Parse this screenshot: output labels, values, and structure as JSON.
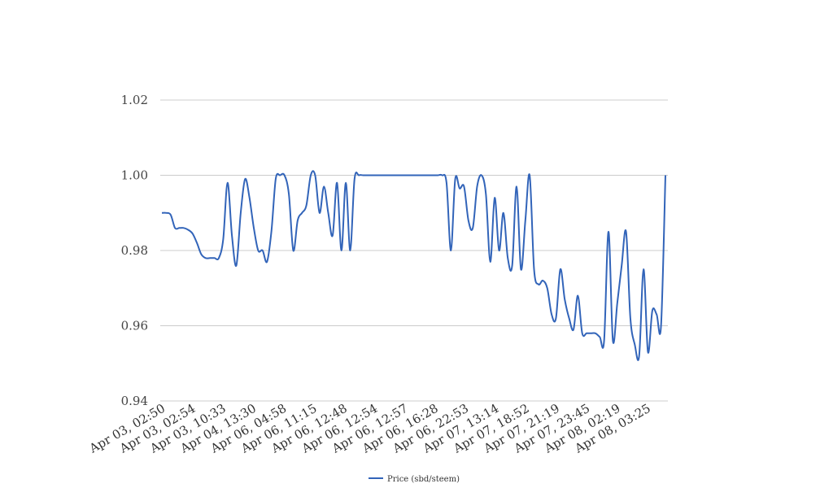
{
  "chart_data": {
    "type": "line",
    "title": "",
    "xlabel": "",
    "ylabel": "",
    "ylim": [
      0.94,
      1.02
    ],
    "y_ticks": [
      0.94,
      0.96,
      0.98,
      1.0,
      1.02
    ],
    "y_tick_labels": [
      "0.94",
      "0.96",
      "0.98",
      "1.00",
      "1.02"
    ],
    "x_tick_labels": [
      "Apr 03, 02:50",
      "Apr 03, 02:54",
      "Apr 03, 10:33",
      "Apr 04, 13:30",
      "Apr 06, 04:58",
      "Apr 06, 11:15",
      "Apr 06, 12:48",
      "Apr 06, 12:54",
      "Apr 06, 12:57",
      "Apr 06, 16:28",
      "Apr 06, 22:53",
      "Apr 07, 13:14",
      "Apr 07, 18:52",
      "Apr 07, 21:19",
      "Apr 07, 23:45",
      "Apr 08, 02:19",
      "Apr 08, 03:25"
    ],
    "grid": true,
    "legend_position": "bottom-center",
    "series": [
      {
        "name": "Price (sbd/steem)",
        "color": "#3264b9",
        "values": [
          0.99,
          0.99,
          0.9895,
          0.986,
          0.986,
          0.986,
          0.9855,
          0.9845,
          0.982,
          0.979,
          0.978,
          0.978,
          0.978,
          0.978,
          0.983,
          0.998,
          0.984,
          0.976,
          0.99,
          0.999,
          0.994,
          0.986,
          0.98,
          0.98,
          0.977,
          0.985,
          0.999,
          1.0,
          1.0,
          0.995,
          0.98,
          0.988,
          0.99,
          0.992,
          1.0,
          1.0,
          0.99,
          0.997,
          0.99,
          0.984,
          0.998,
          0.98,
          0.998,
          0.98,
          0.999,
          1.0,
          1.0,
          1.0,
          1.0,
          1.0,
          1.0,
          1.0,
          1.0,
          1.0,
          1.0,
          1.0,
          1.0,
          1.0,
          1.0,
          1.0,
          1.0,
          1.0,
          1.0,
          1.0,
          1.0,
          0.998,
          0.98,
          0.999,
          0.9965,
          0.997,
          0.988,
          0.986,
          0.997,
          1.0,
          0.995,
          0.977,
          0.994,
          0.98,
          0.99,
          0.978,
          0.976,
          0.997,
          0.975,
          0.988,
          1.0,
          0.975,
          0.971,
          0.972,
          0.97,
          0.963,
          0.962,
          0.975,
          0.967,
          0.962,
          0.959,
          0.968,
          0.958,
          0.958,
          0.958,
          0.958,
          0.957,
          0.956,
          0.985,
          0.956,
          0.966,
          0.976,
          0.985,
          0.962,
          0.955,
          0.952,
          0.975,
          0.953,
          0.964,
          0.963,
          0.96,
          1.0
        ]
      }
    ]
  }
}
